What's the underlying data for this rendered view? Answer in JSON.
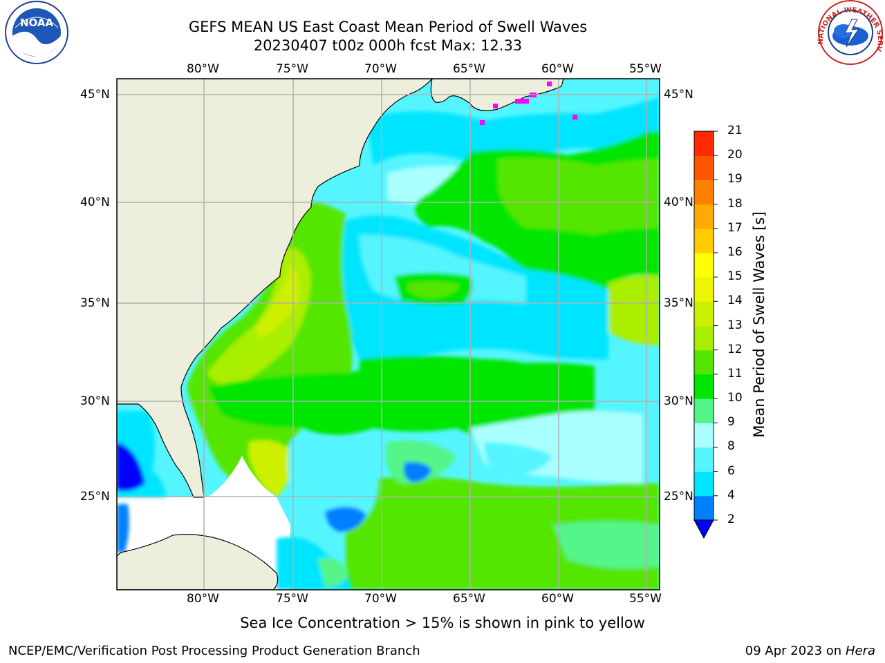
{
  "header": {
    "title_line1": "GEFS MEAN US East Coast Mean Period of Swell Waves",
    "title_line2": "20230407 t00z 000h fcst   Max: 12.33"
  },
  "logos": {
    "left": {
      "icon": "noaa-logo-icon",
      "text": "NOAA"
    },
    "right": {
      "icon": "nws-logo-icon",
      "text": "NATIONAL WEATHER SERVICE"
    }
  },
  "map": {
    "lon_labels": [
      "80°W",
      "75°W",
      "70°W",
      "65°W",
      "60°W",
      "55°W"
    ],
    "lat_labels": [
      "45°N",
      "40°N",
      "35°N",
      "30°N",
      "25°N"
    ],
    "colors": {
      "land": "#eeeedc",
      "no_data": "#ffffff",
      "grid": "#b0b0b0"
    }
  },
  "colorbar": {
    "label": "Mean Period of Swell Waves [s]",
    "ticks": [
      "2",
      "4",
      "6",
      "8",
      "9",
      "10",
      "11",
      "12",
      "13",
      "14",
      "15",
      "16",
      "17",
      "18",
      "19",
      "20",
      "21"
    ],
    "levels": [
      {
        "from": 2,
        "to": 4,
        "color": "#0080ff"
      },
      {
        "from": 4,
        "to": 6,
        "color": "#00e5ff"
      },
      {
        "from": 6,
        "to": 8,
        "color": "#55f5ff"
      },
      {
        "from": 8,
        "to": 9,
        "color": "#aaffff"
      },
      {
        "from": 9,
        "to": 10,
        "color": "#55f58a"
      },
      {
        "from": 10,
        "to": 11,
        "color": "#00e600"
      },
      {
        "from": 11,
        "to": 12,
        "color": "#55e600"
      },
      {
        "from": 12,
        "to": 13,
        "color": "#aaee00"
      },
      {
        "from": 13,
        "to": 14,
        "color": "#ccf000"
      },
      {
        "from": 14,
        "to": 15,
        "color": "#eef500"
      },
      {
        "from": 15,
        "to": 16,
        "color": "#ffff00"
      },
      {
        "from": 16,
        "to": 17,
        "color": "#ffcc00"
      },
      {
        "from": 17,
        "to": 18,
        "color": "#ffaa00"
      },
      {
        "from": 18,
        "to": 19,
        "color": "#ff8000"
      },
      {
        "from": 19,
        "to": 20,
        "color": "#ff5500"
      },
      {
        "from": 20,
        "to": 21,
        "color": "#ff2a00"
      }
    ],
    "under_color": "#0000ff"
  },
  "footer": {
    "ice_note": "Sea Ice Concentration > 15% is shown in pink to yellow",
    "credit_left": "NCEP/EMC/Verification Post Processing Product Generation Branch",
    "credit_right_date": "09 Apr 2023 on",
    "credit_right_machine": "Hera"
  }
}
